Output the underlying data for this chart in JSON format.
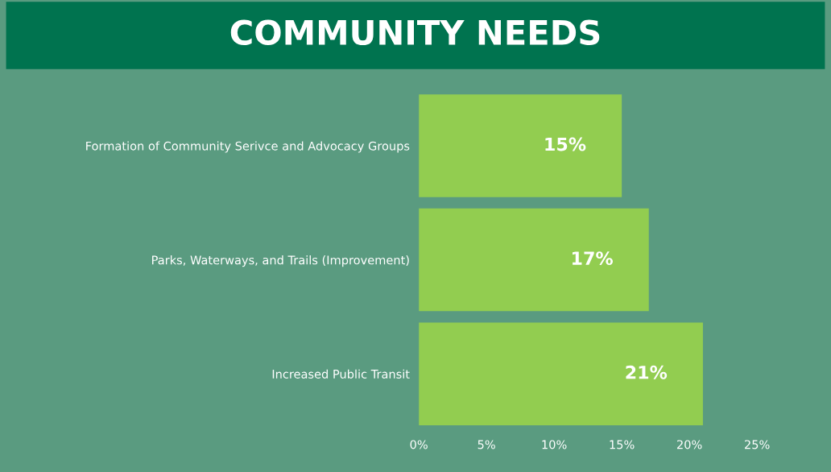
{
  "chart_data": {
    "type": "bar",
    "orientation": "horizontal",
    "title": "COMMUNITY NEEDS",
    "categories": [
      "Formation of Community Serivce and Advocacy Groups",
      "Parks, Waterways, and Trails (Improvement)",
      "Increased Public Transit"
    ],
    "values": [
      15,
      17,
      21
    ],
    "color": "#92cd50",
    "value_labels": [
      "15%",
      "17%",
      "21%"
    ],
    "xlim": [
      0,
      25
    ],
    "xticks": [
      {
        "value": 0,
        "label": "0%"
      },
      {
        "value": 5,
        "label": "5%"
      },
      {
        "value": 10,
        "label": "10%"
      },
      {
        "value": 15,
        "label": "15%"
      },
      {
        "value": 20,
        "label": "20%"
      },
      {
        "value": 25,
        "label": "25%"
      }
    ],
    "grid": false,
    "legend": false
  }
}
